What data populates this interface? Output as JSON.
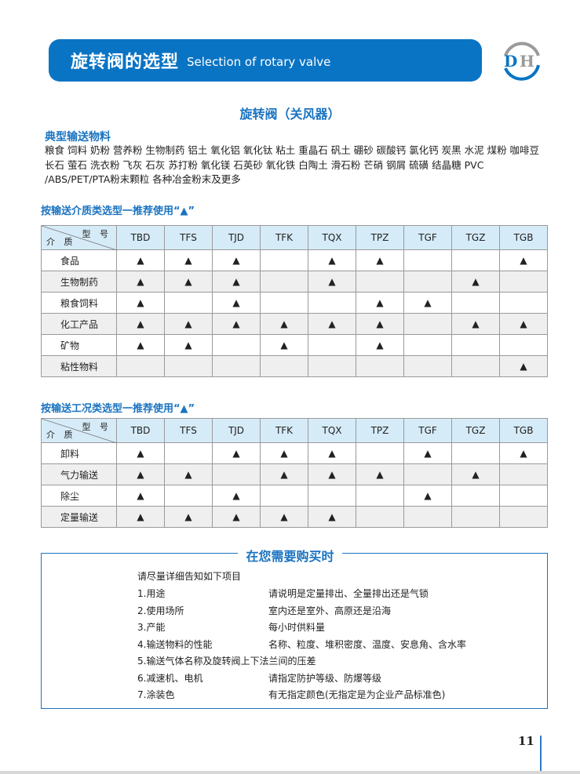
{
  "header": {
    "title_cn": "旋转阀的选型",
    "title_en": "Selection of rotary valve",
    "logo": "DH"
  },
  "subtitle": "旋转阀（关风器）",
  "materials": {
    "title": "典型输送物料",
    "text": "粮食 饲料 奶粉 营养粉 生物制药 铝土 氧化铝 氧化钛 粘土 重晶石 矾土 硼砂 碳酸钙 氯化钙 炭黑 水泥 煤粉 咖啡豆 长石 萤石 洗衣粉 飞灰 石灰 苏打粉 氧化镁 石英砂 氧化铁 白陶土 滑石粉 芒硝 钢屑 硫磺 结晶糖 PVC /ABS/PET/PTA粉末颗粒 各种冶金粉末及更多"
  },
  "colors": {
    "accent": "#0a74c4",
    "header_row": "#d6ebf8",
    "alt_row": "#efefef"
  },
  "table_corner": {
    "model": "型 号",
    "medium": "介 质"
  },
  "models": [
    "TBD",
    "TFS",
    "TJD",
    "TFK",
    "TQX",
    "TPZ",
    "TGF",
    "TGZ",
    "TGB"
  ],
  "mark": "▲",
  "table1": {
    "title": "按输送介质类选型一推荐使用“▲”",
    "rows": [
      {
        "label": "食品",
        "marks": [
          1,
          1,
          1,
          0,
          1,
          1,
          0,
          0,
          1
        ]
      },
      {
        "label": "生物制药",
        "marks": [
          1,
          1,
          1,
          0,
          1,
          0,
          0,
          1,
          0
        ]
      },
      {
        "label": "粮食饲料",
        "marks": [
          1,
          0,
          1,
          0,
          0,
          1,
          1,
          0,
          0
        ]
      },
      {
        "label": "化工产品",
        "marks": [
          1,
          1,
          1,
          1,
          1,
          1,
          0,
          1,
          1
        ]
      },
      {
        "label": "矿物",
        "marks": [
          1,
          1,
          0,
          1,
          0,
          1,
          0,
          0,
          0
        ]
      },
      {
        "label": "粘性物料",
        "marks": [
          0,
          0,
          0,
          0,
          0,
          0,
          0,
          0,
          1
        ]
      }
    ]
  },
  "table2": {
    "title": "按输送工况类选型一推荐使用“▲”",
    "rows": [
      {
        "label": "卸料",
        "marks": [
          1,
          0,
          1,
          1,
          1,
          0,
          1,
          0,
          1
        ]
      },
      {
        "label": "气力输送",
        "marks": [
          1,
          1,
          0,
          1,
          1,
          1,
          0,
          1,
          0
        ]
      },
      {
        "label": "除尘",
        "marks": [
          1,
          0,
          1,
          0,
          0,
          0,
          1,
          0,
          0
        ]
      },
      {
        "label": "定量输送",
        "marks": [
          1,
          1,
          1,
          1,
          1,
          0,
          0,
          0,
          0
        ]
      }
    ]
  },
  "purchase": {
    "title": "在您需要购买时",
    "intro": "请尽量详细告知如下项目",
    "items": [
      {
        "item": "1.用途",
        "detail": "请说明是定量排出、全量排出还是气锁"
      },
      {
        "item": "2.使用场所",
        "detail": "室内还是室外、高原还是沿海"
      },
      {
        "item": "3.产能",
        "detail": "每小时供料量"
      },
      {
        "item": "4.输送物料的性能",
        "detail": "名称、粒度、堆积密度、温度、安息角、含水率"
      },
      {
        "item": "5.输送气体名称及旋转阀上下法兰间的压差",
        "detail": ""
      },
      {
        "item": "6.减速机、电机",
        "detail": "请指定防护等级、防爆等级"
      },
      {
        "item": "7.涂装色",
        "detail": "有无指定颜色(无指定是为企业产品标准色)"
      }
    ]
  },
  "page_number": "11"
}
